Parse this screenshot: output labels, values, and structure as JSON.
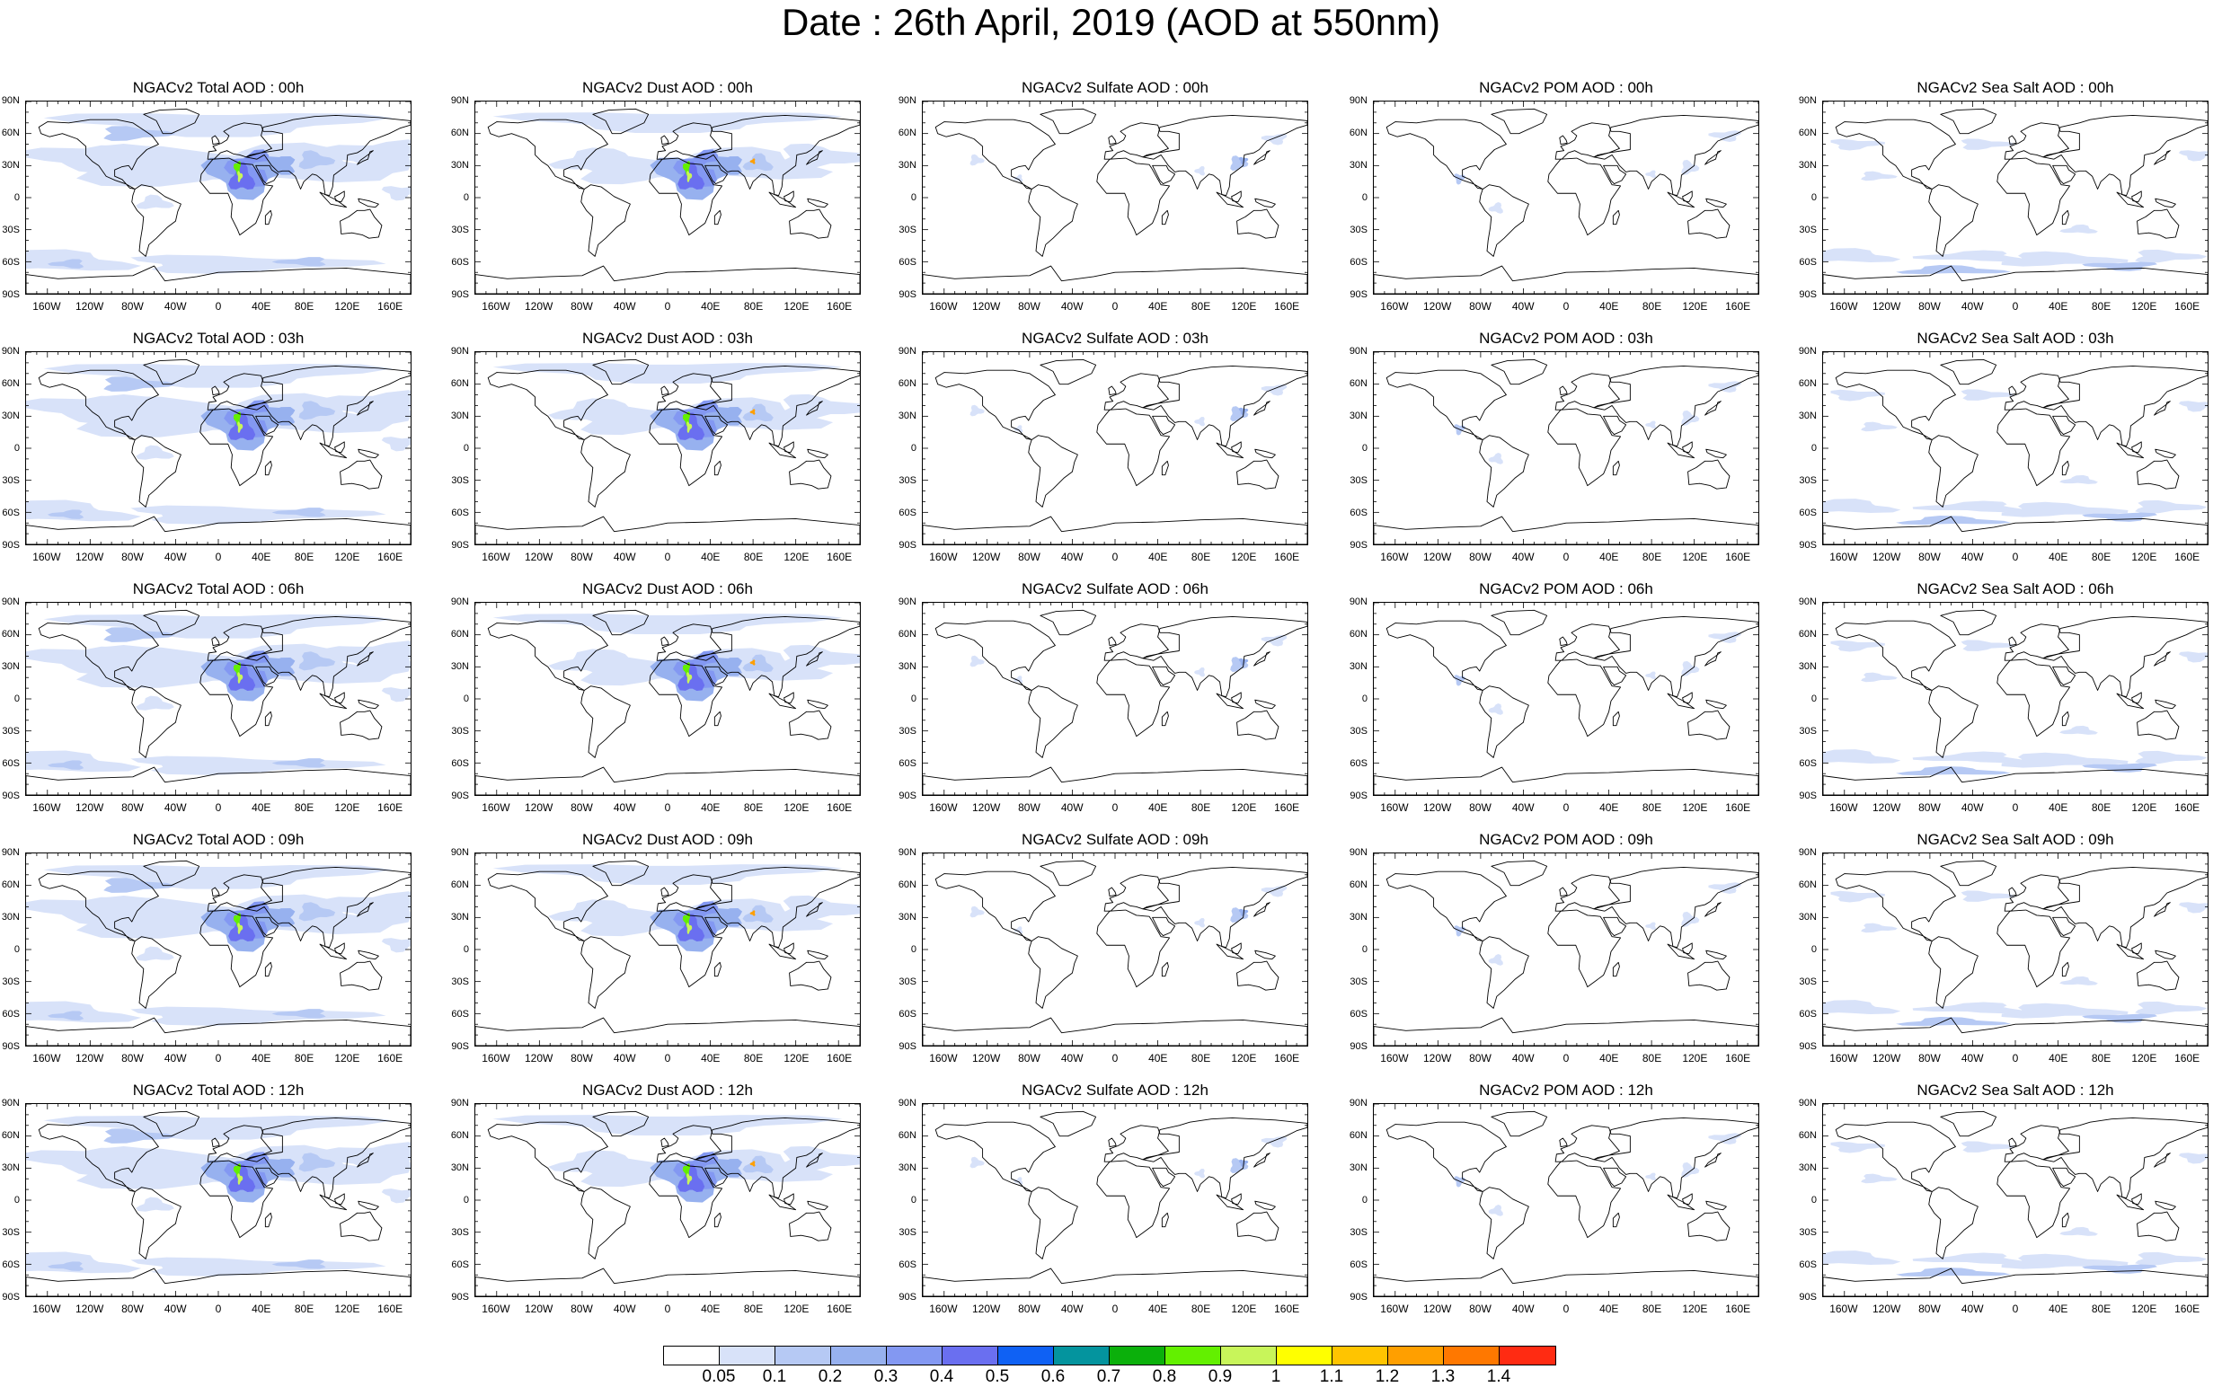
{
  "title": "Date : 26th April, 2019 (AOD at 550nm)",
  "lat_labels": [
    "90N",
    "60N",
    "30N",
    "0",
    "30S",
    "60S",
    "90S"
  ],
  "lon_labels": [
    "160W",
    "120W",
    "80W",
    "40W",
    "0",
    "40E",
    "80E",
    "120E",
    "160E"
  ],
  "species": [
    "total",
    "dust",
    "sulfate",
    "pom",
    "seasalt"
  ],
  "panel_titles": [
    [
      "NGACv2 Total AOD : 00h",
      "NGACv2 Dust AOD : 00h",
      "NGACv2 Sulfate AOD : 00h",
      "NGACv2 POM AOD : 00h",
      "NGACv2 Sea Salt AOD : 00h"
    ],
    [
      "NGACv2 Total AOD : 03h",
      "NGACv2 Dust AOD : 03h",
      "NGACv2 Sulfate AOD : 03h",
      "NGACv2 POM AOD : 03h",
      "NGACv2 Sea Salt AOD : 03h"
    ],
    [
      "NGACv2 Total AOD : 06h",
      "NGACv2 Dust AOD : 06h",
      "NGACv2 Sulfate AOD : 06h",
      "NGACv2 POM AOD : 06h",
      "NGACv2 Sea Salt AOD : 06h"
    ],
    [
      "NGACv2 Total AOD : 09h",
      "NGACv2 Dust AOD : 09h",
      "NGACv2 Sulfate AOD : 09h",
      "NGACv2 POM AOD : 09h",
      "NGACv2 Sea Salt  AOD : 09h"
    ],
    [
      "NGACv2 Total AOD  : 12h",
      "NGACv2 Dust AOD : 12h",
      "NGACv2 Sulfate AOD : 12h",
      "NGACv2 POM  AOD : 12h",
      "NGACv2 Sea Salt AOD : 12h"
    ]
  ],
  "colorbar": {
    "colors": [
      "#ffffff",
      "#d8e2f9",
      "#b6c9f4",
      "#97b1ef",
      "#8398f2",
      "#6a6ff0",
      "#0f61f4",
      "#04949e",
      "#0bb00b",
      "#63f000",
      "#a8f000",
      "#c8f55a",
      "#ffff00",
      "#ffc400",
      "#ff9f00",
      "#ff7800",
      "#ff2b12"
    ],
    "labels": [
      "0.05",
      "0.1",
      "0.2",
      "0.3",
      "0.4",
      "0.5",
      "0.6",
      "0.7",
      "0.8",
      "0.9",
      "1",
      "1.1",
      "1.2",
      "1.3",
      "1.4"
    ]
  }
}
